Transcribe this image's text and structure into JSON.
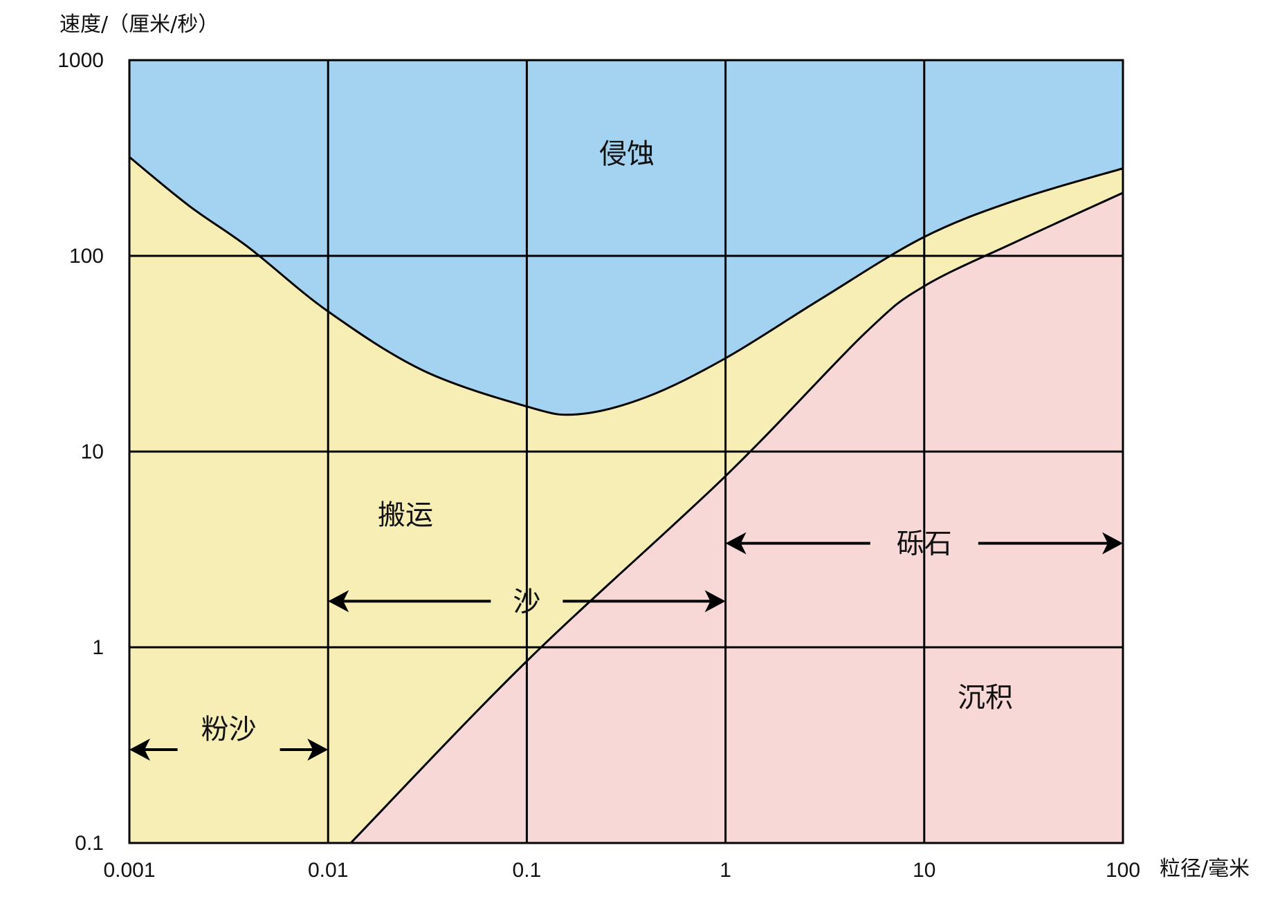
{
  "chart_data": {
    "type": "area",
    "title": "",
    "xlabel": "粒径/毫米",
    "ylabel": "速度/（厘米/秒）",
    "x_scale": "log",
    "y_scale": "log",
    "xlim": [
      0.001,
      100
    ],
    "ylim": [
      0.1,
      1000
    ],
    "x_ticks": [
      0.001,
      0.01,
      0.1,
      1,
      10,
      100
    ],
    "x_tick_labels": [
      "0.001",
      "0.01",
      "0.1",
      "1",
      "10",
      "100"
    ],
    "y_ticks": [
      0.1,
      1,
      10,
      100,
      1000
    ],
    "y_tick_labels": [
      "0.1",
      "1",
      "10",
      "100",
      "1000"
    ],
    "grid": true,
    "series": [
      {
        "name": "",
        "x": [
          0.001,
          0.002,
          0.004,
          0.01,
          0.03,
          0.1,
          0.18,
          0.4,
          1,
          3,
          10,
          30,
          100
        ],
        "y": [
          320,
          180,
          110,
          52,
          26,
          17,
          15.5,
          19,
          30,
          60,
          125,
          195,
          280
        ]
      },
      {
        "name": "",
        "x": [
          0.013,
          0.1,
          1,
          5,
          10,
          30,
          100
        ],
        "y": [
          0.1,
          0.85,
          7.5,
          40,
          70,
          120,
          210
        ]
      }
    ],
    "regions": [
      {
        "label": "侵蚀",
        "color": "#a3d3f0"
      },
      {
        "label": "搬运",
        "color": "#f7eeb5"
      },
      {
        "label": "沉积",
        "color": "#f8d8d6"
      }
    ],
    "size_ranges": [
      {
        "label": "粉沙",
        "from": 0.001,
        "to": 0.01
      },
      {
        "label": "沙",
        "from": 0.01,
        "to": 1
      },
      {
        "label": "砾石",
        "from": 1,
        "to": 100
      }
    ]
  }
}
